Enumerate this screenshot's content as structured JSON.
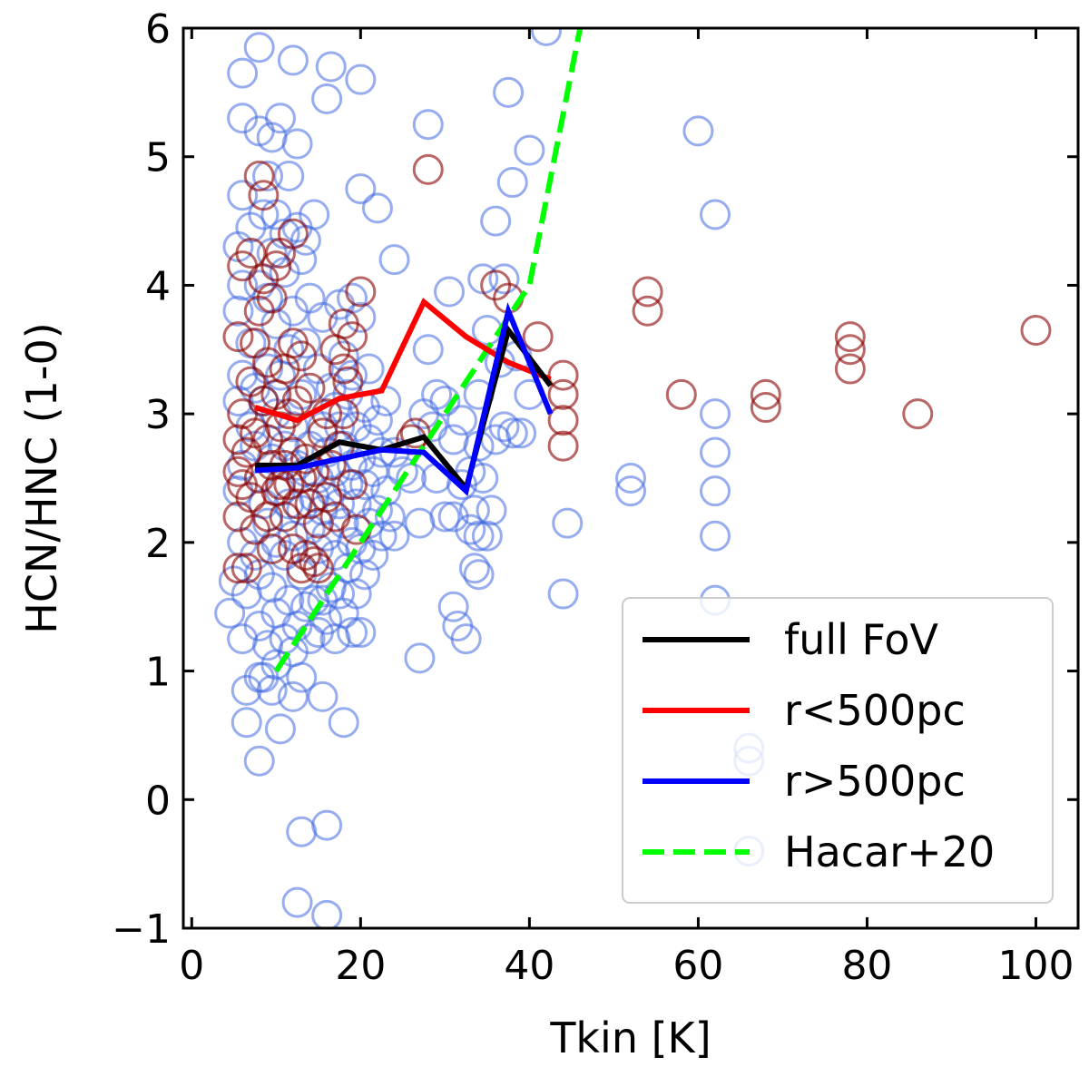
{
  "chart_data": {
    "type": "scatter",
    "xlabel": "Tkin [K]",
    "ylabel": "HCN/HNC (1-0)",
    "xlim": [
      -1,
      105
    ],
    "ylim": [
      -1,
      6
    ],
    "xticks": [
      0,
      20,
      40,
      60,
      80,
      100
    ],
    "yticks": [
      -1,
      0,
      1,
      2,
      3,
      4,
      5,
      6
    ],
    "xtick_labels": [
      "0",
      "20",
      "40",
      "60",
      "80",
      "100"
    ],
    "ytick_labels": [
      "−1",
      "0",
      "1",
      "2",
      "3",
      "4",
      "5",
      "6"
    ],
    "grid": false,
    "legend_position": "lower-right",
    "colors": {
      "outer_points": "#4169e1",
      "inner_points": "#8b0000",
      "full_fov": "#000000",
      "inner_line": "#ff0000",
      "outer_line": "#0000ff",
      "hacar": "#00ff00"
    },
    "scatter_outer": [
      [
        4.5,
        1.45
      ],
      [
        5,
        1.7
      ],
      [
        5.5,
        2.4
      ],
      [
        5.5,
        3.1
      ],
      [
        5.5,
        3.8
      ],
      [
        5.5,
        4.3
      ],
      [
        6,
        1.25
      ],
      [
        6,
        2.0
      ],
      [
        6,
        2.6
      ],
      [
        6,
        3.3
      ],
      [
        6,
        4.0
      ],
      [
        6,
        4.7
      ],
      [
        6,
        5.3
      ],
      [
        6,
        5.65
      ],
      [
        6.5,
        0.6
      ],
      [
        6.5,
        0.85
      ],
      [
        6.5,
        1.6
      ],
      [
        7,
        2.9
      ],
      [
        7,
        3.55
      ],
      [
        7,
        4.45
      ],
      [
        7.5,
        1.9
      ],
      [
        7.5,
        2.75
      ],
      [
        7.5,
        3.2
      ],
      [
        8,
        0.3
      ],
      [
        8,
        0.95
      ],
      [
        8,
        1.35
      ],
      [
        8,
        1.75
      ],
      [
        8,
        4.0
      ],
      [
        8,
        5.2
      ],
      [
        8,
        5.85
      ],
      [
        8.5,
        0.95
      ],
      [
        8.5,
        2.3
      ],
      [
        8.5,
        3.1
      ],
      [
        8.5,
        4.55
      ],
      [
        9,
        1.2
      ],
      [
        9,
        2.15
      ],
      [
        9,
        3.35
      ],
      [
        9,
        3.9
      ],
      [
        9,
        4.85
      ],
      [
        9.5,
        0.85
      ],
      [
        9.5,
        1.65
      ],
      [
        9.5,
        2.65
      ],
      [
        9.5,
        4.25
      ],
      [
        9.5,
        5.15
      ],
      [
        10,
        1.05
      ],
      [
        10,
        1.45
      ],
      [
        10,
        2.0
      ],
      [
        10,
        3.0
      ],
      [
        10,
        3.7
      ],
      [
        10,
        4.55
      ],
      [
        10.5,
        0.55
      ],
      [
        10.5,
        2.4
      ],
      [
        10.5,
        3.3
      ],
      [
        10.5,
        5.3
      ],
      [
        11,
        1.25
      ],
      [
        11,
        1.9
      ],
      [
        11,
        2.75
      ],
      [
        11,
        4.1
      ],
      [
        11,
        4.4
      ],
      [
        11.5,
        1.55
      ],
      [
        11.5,
        2.3
      ],
      [
        11.5,
        3.5
      ],
      [
        11.5,
        4.85
      ],
      [
        12,
        0.8
      ],
      [
        12,
        1.15
      ],
      [
        12,
        2.05
      ],
      [
        12,
        2.9
      ],
      [
        12,
        3.8
      ],
      [
        12,
        5.75
      ],
      [
        12.5,
        -0.8
      ],
      [
        12.5,
        1.35
      ],
      [
        12.5,
        2.6
      ],
      [
        12.5,
        4.45
      ],
      [
        12.5,
        5.1
      ],
      [
        13,
        -0.25
      ],
      [
        13,
        0.95
      ],
      [
        13,
        1.75
      ],
      [
        13,
        2.25
      ],
      [
        13,
        3.15
      ],
      [
        13,
        4.2
      ],
      [
        13.5,
        1.5
      ],
      [
        13.5,
        2.55
      ],
      [
        13.5,
        3.55
      ],
      [
        13.5,
        4.35
      ],
      [
        14,
        1.25
      ],
      [
        14,
        2.1
      ],
      [
        14,
        2.75
      ],
      [
        14,
        3.9
      ],
      [
        14.5,
        1.55
      ],
      [
        14.5,
        2.35
      ],
      [
        14.5,
        4.55
      ],
      [
        15,
        1.3
      ],
      [
        15,
        1.95
      ],
      [
        15,
        2.5
      ],
      [
        15,
        3.35
      ],
      [
        15.5,
        0.8
      ],
      [
        15.5,
        1.55
      ],
      [
        15.5,
        2.25
      ],
      [
        15.5,
        2.9
      ],
      [
        15.5,
        3.75
      ],
      [
        16,
        -0.2
      ],
      [
        16,
        -0.9
      ],
      [
        16,
        1.4
      ],
      [
        16,
        2.05
      ],
      [
        16,
        2.7
      ],
      [
        16,
        5.45
      ],
      [
        16.5,
        1.65
      ],
      [
        16.5,
        2.4
      ],
      [
        16.5,
        3.2
      ],
      [
        16.5,
        5.7
      ],
      [
        17,
        1.25
      ],
      [
        17,
        1.9
      ],
      [
        17,
        2.55
      ],
      [
        17,
        3.05
      ],
      [
        17.5,
        1.6
      ],
      [
        17.5,
        2.3
      ],
      [
        17.5,
        2.9
      ],
      [
        17.5,
        3.85
      ],
      [
        18,
        0.6
      ],
      [
        18,
        1.45
      ],
      [
        18,
        2.15
      ],
      [
        18,
        2.75
      ],
      [
        18,
        3.45
      ],
      [
        18.5,
        1.8
      ],
      [
        18.5,
        2.45
      ],
      [
        18.5,
        3.15
      ],
      [
        19,
        1.3
      ],
      [
        19,
        2.0
      ],
      [
        19,
        2.6
      ],
      [
        19,
        3.3
      ],
      [
        19,
        3.9
      ],
      [
        19.5,
        1.6
      ],
      [
        19.5,
        2.3
      ],
      [
        19.5,
        2.9
      ],
      [
        20,
        1.3
      ],
      [
        20,
        1.95
      ],
      [
        20,
        2.65
      ],
      [
        20,
        3.75
      ],
      [
        20,
        4.75
      ],
      [
        20,
        5.6
      ],
      [
        20.5,
        1.75
      ],
      [
        20.5,
        2.45
      ],
      [
        20.5,
        3.05
      ],
      [
        21,
        2.15
      ],
      [
        21,
        2.8
      ],
      [
        21,
        3.35
      ],
      [
        21.5,
        1.9
      ],
      [
        21.5,
        2.55
      ],
      [
        22,
        2.25
      ],
      [
        22,
        2.95
      ],
      [
        22,
        4.6
      ],
      [
        22.5,
        2.05
      ],
      [
        22.5,
        2.7
      ],
      [
        23,
        2.4
      ],
      [
        23,
        3.1
      ],
      [
        23.5,
        2.2
      ],
      [
        24,
        2.05
      ],
      [
        24,
        2.7
      ],
      [
        24,
        4.2
      ],
      [
        25,
        2.55
      ],
      [
        26,
        2.5
      ],
      [
        27,
        1.1
      ],
      [
        27,
        2.15
      ],
      [
        27.5,
        3.0
      ],
      [
        28,
        3.5
      ],
      [
        28,
        5.25
      ],
      [
        28.5,
        2.9
      ],
      [
        29,
        2.5
      ],
      [
        29,
        3.15
      ],
      [
        30,
        2.2
      ],
      [
        30,
        3.1
      ],
      [
        30.5,
        3.95
      ],
      [
        31,
        1.5
      ],
      [
        31,
        2.2
      ],
      [
        31,
        2.8
      ],
      [
        31.5,
        1.35
      ],
      [
        32,
        2.45
      ],
      [
        32,
        2.95
      ],
      [
        32.5,
        1.25
      ],
      [
        33,
        2.1
      ],
      [
        33,
        2.55
      ],
      [
        33.5,
        1.8
      ],
      [
        33.5,
        2.25
      ],
      [
        34,
        1.75
      ],
      [
        34,
        2.05
      ],
      [
        34,
        2.75
      ],
      [
        34,
        3.15
      ],
      [
        34.5,
        2.5
      ],
      [
        34.5,
        4.05
      ],
      [
        35,
        2.05
      ],
      [
        35,
        3.65
      ],
      [
        35.5,
        2.25
      ],
      [
        36,
        2.8
      ],
      [
        36,
        4.5
      ],
      [
        36.5,
        3.4
      ],
      [
        37,
        2.9
      ],
      [
        37,
        4.05
      ],
      [
        37.5,
        5.5
      ],
      [
        38,
        2.85
      ],
      [
        38,
        4.8
      ],
      [
        38.5,
        3.45
      ],
      [
        39,
        2.85
      ],
      [
        40,
        3.15
      ],
      [
        40,
        5.05
      ],
      [
        42,
        5.98
      ],
      [
        44,
        1.6
      ],
      [
        44.5,
        2.15
      ],
      [
        52,
        2.4
      ],
      [
        52,
        2.5
      ],
      [
        60,
        5.2
      ],
      [
        62,
        1.55
      ],
      [
        62,
        2.05
      ],
      [
        62,
        2.4
      ],
      [
        62,
        2.7
      ],
      [
        62,
        3.0
      ],
      [
        62,
        4.55
      ],
      [
        66,
        0.3
      ],
      [
        66,
        0.4
      ],
      [
        66,
        -0.4
      ]
    ],
    "scatter_inner": [
      [
        5.5,
        1.8
      ],
      [
        5.5,
        2.2
      ],
      [
        5.5,
        2.55
      ],
      [
        5.5,
        2.8
      ],
      [
        5.5,
        3.6
      ],
      [
        6,
        3.0
      ],
      [
        6,
        2.45
      ],
      [
        6,
        4.15
      ],
      [
        6.5,
        2.7
      ],
      [
        6.5,
        1.8
      ],
      [
        7,
        2.35
      ],
      [
        7,
        3.25
      ],
      [
        7,
        4.25
      ],
      [
        7.5,
        2.1
      ],
      [
        7.5,
        2.85
      ],
      [
        7.5,
        3.55
      ],
      [
        8,
        4.85
      ],
      [
        8,
        2.5
      ],
      [
        8,
        3.8
      ],
      [
        8.5,
        3.1
      ],
      [
        8.5,
        4.05
      ],
      [
        8.5,
        4.7
      ],
      [
        9,
        2.2
      ],
      [
        9,
        2.8
      ],
      [
        9,
        3.4
      ],
      [
        9.5,
        1.95
      ],
      [
        9.5,
        2.6
      ],
      [
        9.5,
        3.9
      ],
      [
        10,
        2.4
      ],
      [
        10,
        3.15
      ],
      [
        10,
        4.15
      ],
      [
        10.5,
        2.45
      ],
      [
        10.5,
        2.9
      ],
      [
        10.5,
        4.25
      ],
      [
        11,
        2.2
      ],
      [
        11,
        2.6
      ],
      [
        11,
        3.35
      ],
      [
        11.5,
        2.45
      ],
      [
        11.5,
        3.0
      ],
      [
        12,
        1.95
      ],
      [
        12,
        2.7
      ],
      [
        12,
        3.55
      ],
      [
        12,
        4.4
      ],
      [
        12.5,
        2.3
      ],
      [
        12.5,
        3.1
      ],
      [
        13,
        1.8
      ],
      [
        13,
        2.5
      ],
      [
        13,
        3.45
      ],
      [
        13.5,
        1.9
      ],
      [
        13.5,
        2.65
      ],
      [
        14,
        2.3
      ],
      [
        14,
        3.2
      ],
      [
        14.5,
        1.85
      ],
      [
        14.5,
        2.55
      ],
      [
        15,
        1.8
      ],
      [
        15,
        2.15
      ],
      [
        15.5,
        2.85
      ],
      [
        16,
        2.35
      ],
      [
        16,
        3.0
      ],
      [
        16.5,
        2.6
      ],
      [
        17,
        3.5
      ],
      [
        17,
        2.2
      ],
      [
        17.5,
        2.75
      ],
      [
        18,
        3.7
      ],
      [
        18,
        3.35
      ],
      [
        18,
        3.0
      ],
      [
        18.5,
        3.25
      ],
      [
        19,
        2.45
      ],
      [
        19,
        3.6
      ],
      [
        19.5,
        2.1
      ],
      [
        20,
        3.95
      ],
      [
        26,
        2.8
      ],
      [
        26.5,
        2.85
      ],
      [
        28,
        4.9
      ],
      [
        36,
        4.0
      ],
      [
        37.5,
        3.9
      ],
      [
        41,
        3.6
      ],
      [
        44,
        3.3
      ],
      [
        44,
        3.15
      ],
      [
        44,
        2.95
      ],
      [
        44,
        2.75
      ],
      [
        54,
        3.95
      ],
      [
        54,
        3.8
      ],
      [
        58,
        3.15
      ],
      [
        68,
        3.15
      ],
      [
        68,
        3.05
      ],
      [
        78,
        3.6
      ],
      [
        78,
        3.5
      ],
      [
        78,
        3.35
      ],
      [
        86,
        3.0
      ],
      [
        100,
        3.65
      ]
    ],
    "series": [
      {
        "name": "full FoV",
        "x": [
          7.5,
          12.5,
          17.5,
          22.5,
          27.5,
          32.5,
          37.5,
          42.5
        ],
        "y": [
          2.6,
          2.6,
          2.78,
          2.72,
          2.82,
          2.42,
          3.65,
          3.22
        ]
      },
      {
        "name": "r<500pc",
        "x": [
          7.5,
          12.5,
          17.5,
          22.5,
          27.5,
          32.5,
          37.5,
          42.5
        ],
        "y": [
          3.05,
          2.95,
          3.12,
          3.18,
          3.87,
          3.6,
          3.4,
          3.27
        ]
      },
      {
        "name": "r>500pc",
        "x": [
          7.5,
          12.5,
          17.5,
          22.5,
          27.5,
          32.5,
          37.5,
          42.5
        ],
        "y": [
          2.56,
          2.58,
          2.65,
          2.72,
          2.7,
          2.4,
          3.8,
          3.0
        ]
      },
      {
        "name": "Hacar+20",
        "x": [
          10,
          20,
          30,
          35,
          40,
          46
        ],
        "y": [
          1.0,
          2.0,
          3.0,
          3.5,
          4.0,
          6.0
        ]
      }
    ],
    "legend": [
      "full FoV",
      "r<500pc",
      "r>500pc",
      "Hacar+20"
    ]
  }
}
